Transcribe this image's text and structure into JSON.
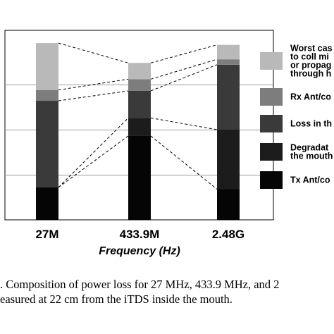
{
  "chart_data": {
    "type": "bar",
    "stacked": true,
    "categories": [
      "27M",
      "433.9M",
      "2.48G"
    ],
    "xlabel": "Frequency (Hz)",
    "ylabel": "",
    "ylim": [
      0,
      100
    ],
    "grid": true,
    "legend_position": "right",
    "series": [
      {
        "name": "Tx Ant/co",
        "color": "#050505",
        "values": [
          18,
          46.5,
          17
        ]
      },
      {
        "name": "Degradat the mouth",
        "color": "#1c1c1c",
        "values": [
          0,
          10,
          33
        ]
      },
      {
        "name": "Loss in th",
        "color": "#3a3a3a",
        "values": [
          48,
          15,
          36
        ]
      },
      {
        "name": "Rx Ant/co",
        "color": "#7d7d7d",
        "values": [
          6,
          6.5,
          3
        ]
      },
      {
        "name": "Worst cas to coll mi or propag through h",
        "color": "#b9b9b9",
        "values": [
          26,
          9,
          8
        ]
      }
    ],
    "legend_lines": [
      [
        "Worst cas",
        "to coll mi",
        "or propag",
        "through h"
      ],
      [
        "Rx Ant/co"
      ],
      [
        "Loss in th"
      ],
      [
        "Degradat",
        "the mouth"
      ],
      [
        "Tx Ant/co"
      ]
    ]
  },
  "caption": {
    "line1": ". Composition of power loss for 27 MHz, 433.9 MHz, and 2",
    "line2": "easured at 22 cm from the iTDS inside the mouth."
  }
}
